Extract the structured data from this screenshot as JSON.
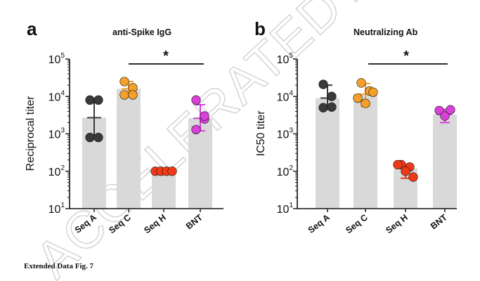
{
  "watermark_text": "ACCELERATED ARTICLE PREVIEW",
  "caption": "Extended Data Fig. 7",
  "chart_data": [
    {
      "type": "bar",
      "panel": "a",
      "title": "anti-Spike IgG",
      "ylabel": "Reciprocal titer",
      "yscale": "log",
      "ylim": [
        10,
        100000
      ],
      "categories": [
        "Seq A",
        "Seq C",
        "Seq H",
        "BNT"
      ],
      "values": [
        2700,
        16000,
        100,
        2600
      ],
      "error_high": [
        8000,
        25000,
        100,
        6000
      ],
      "error_low": [
        900,
        10000,
        100,
        1200
      ],
      "points": [
        [
          8000,
          8000,
          800,
          800
        ],
        [
          25000,
          17000,
          11000,
          11000
        ],
        [
          100,
          100,
          100,
          100
        ],
        [
          8000,
          2500,
          1300,
          3000
        ]
      ],
      "point_colors": [
        "#3a3a3a",
        "#f5a02a",
        "#f03a16",
        "#d840d8"
      ],
      "error_colors": [
        "#3a3a3a",
        "#f5a02a",
        "#f03a16",
        "#d840d8"
      ],
      "significance": {
        "from": "Seq C",
        "to": "BNT",
        "label": "*"
      },
      "ytick_labels": [
        {
          "base": "10",
          "exp": "1"
        },
        {
          "base": "10",
          "exp": "2"
        },
        {
          "base": "10",
          "exp": "3"
        },
        {
          "base": "10",
          "exp": "4"
        },
        {
          "base": "10",
          "exp": "5"
        }
      ]
    },
    {
      "type": "bar",
      "panel": "b",
      "title": "Neutralizing Ab",
      "ylabel": "IC50 titer",
      "yscale": "log",
      "ylim": [
        10,
        100000
      ],
      "categories": [
        "Seq A",
        "Seq C",
        "Seq H",
        "BNT"
      ],
      "values": [
        9000,
        11500,
        120,
        3300
      ],
      "error_high": [
        20000,
        22000,
        140,
        4500
      ],
      "error_low": [
        4500,
        5500,
        65,
        2000
      ],
      "points": [
        [
          21000,
          10000,
          5000,
          5200
        ],
        [
          23000,
          14000,
          9000,
          6500,
          13000
        ],
        [
          150,
          130,
          150,
          100,
          70
        ],
        [
          4200,
          3000,
          4400
        ]
      ],
      "point_colors": [
        "#3a3a3a",
        "#f5a02a",
        "#f03a16",
        "#d840d8"
      ],
      "error_colors": [
        "#3a3a3a",
        "#f5a02a",
        "#f03a16",
        "#d840d8"
      ],
      "significance": {
        "from": "Seq C",
        "to": "BNT",
        "label": "*"
      },
      "ytick_labels": [
        {
          "base": "10",
          "exp": "1"
        },
        {
          "base": "10",
          "exp": "2"
        },
        {
          "base": "10",
          "exp": "3"
        },
        {
          "base": "10",
          "exp": "4"
        },
        {
          "base": "10",
          "exp": "5"
        }
      ]
    }
  ]
}
